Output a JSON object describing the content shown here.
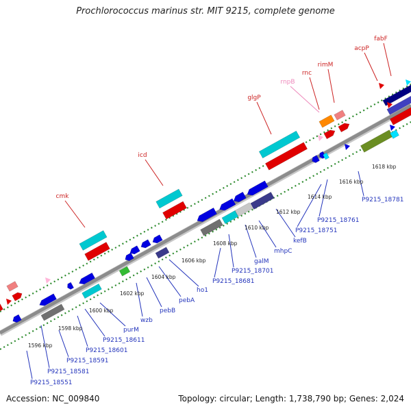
{
  "title": "Prochlorococcus marinus str. MIT 9215, complete genome",
  "footer": {
    "accession": "Accession: NC_009840",
    "summary": "Topology: circular; Length: 1,738,790 bp; Genes: 2,024"
  },
  "colors": {
    "backbone": "#909090",
    "dots": "#2e8b2e",
    "forward_label": "#cc2222",
    "forward_label_pink": "#ee88bb",
    "reverse_label": "#2233bb",
    "tick_text": "#222222"
  },
  "forward_labels": [
    {
      "text": "cmk",
      "color": "#cc2222"
    },
    {
      "text": "icd",
      "color": "#cc2222"
    },
    {
      "text": "glgP",
      "color": "#cc2222"
    },
    {
      "text": "rnpB",
      "color": "#ee88bb"
    },
    {
      "text": "rnc",
      "color": "#cc2222"
    },
    {
      "text": "rimM",
      "color": "#cc2222"
    },
    {
      "text": "acpP",
      "color": "#cc2222"
    },
    {
      "text": "fabF",
      "color": "#cc2222"
    }
  ],
  "reverse_labels": [
    {
      "text": "P9215_18551"
    },
    {
      "text": "P9215_18581"
    },
    {
      "text": "P9215_18591"
    },
    {
      "text": "P9215_18601"
    },
    {
      "text": "P9215_18611"
    },
    {
      "text": "purM"
    },
    {
      "text": "wzb"
    },
    {
      "text": "pebB"
    },
    {
      "text": "pebA"
    },
    {
      "text": "ho1"
    },
    {
      "text": "P9215_18681"
    },
    {
      "text": "P9215_18701"
    },
    {
      "text": "galM"
    },
    {
      "text": "mhpC"
    },
    {
      "text": "kefB"
    },
    {
      "text": "P9215_18751"
    },
    {
      "text": "P9215_18761"
    },
    {
      "text": "P9215_18781"
    }
  ],
  "ticks": [
    "1596 kbp",
    "1598 kbp",
    "1600 kbp",
    "1602 kbp",
    "1604 kbp",
    "1606 kbp",
    "1608 kbp",
    "1610 kbp",
    "1612 kbp",
    "1614 kbp",
    "1616 kbp",
    "1618 kbp"
  ]
}
